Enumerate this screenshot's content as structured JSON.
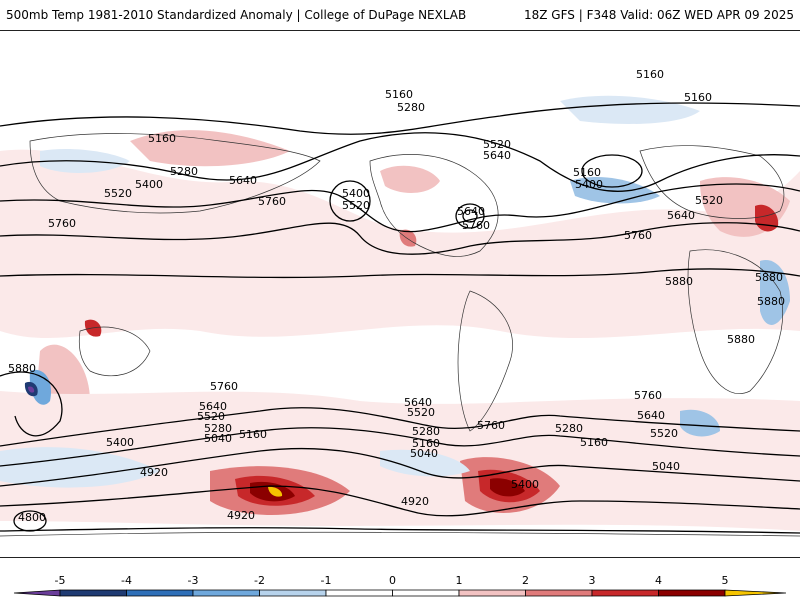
{
  "header": {
    "title": "500mb Temp 1981-2010 Standardized Anomaly | College of DuPage NEXLAB",
    "run_info": "18Z GFS | F348 Valid: 06Z WED APR 09 2025"
  },
  "map": {
    "contour_labels": {
      "top_5160_a": "5160",
      "top_5160_b": "5160",
      "n_5160_c": "5160",
      "n_5280_a": "5280",
      "n_5160_d": "5160",
      "n_5280_b": "5280",
      "n_5400_a": "5400",
      "n_5520_a": "5520",
      "n_5640_a": "5640",
      "n_5760_a": "5760",
      "n_5760_b": "5760",
      "n_5400_b": "5400",
      "n_5520_b": "5520",
      "n_5520_c": "5520",
      "n_5640_b": "5640",
      "n_5640_c": "5640",
      "n_5760_c": "5760",
      "n_5160_e": "5160",
      "n_5400_c": "5400",
      "n_5520_d": "5520",
      "n_5640_d": "5640",
      "n_5760_d": "5760",
      "n_5880_a": "5880",
      "n_5880_b": "5880",
      "n_5880_c": "5880",
      "n_5880_d": "5880",
      "s_5880_e": "5880",
      "s_5760_e": "5760",
      "s_5640_e": "5640",
      "s_5520_e": "5520",
      "s_5400_e": "5400",
      "s_5280_e": "5280",
      "s_5040_e": "5040",
      "s_5160_f": "5160",
      "s_4920_a": "4920",
      "s_4800_a": "4800",
      "s_4920_b": "4920",
      "s_5640_f": "5640",
      "s_5520_f": "5520",
      "s_5760_f": "5760",
      "s_5280_f": "5280",
      "s_5160_g": "5160",
      "s_5040_f": "5040",
      "s_4920_c": "4920",
      "s_5400_f": "5400",
      "s_5280_g": "5280",
      "s_5160_h": "5160",
      "s_5760_g": "5760",
      "s_5640_g": "5640",
      "s_5520_g": "5520",
      "s_5040_g": "5040"
    }
  },
  "colorbar": {
    "ticks": [
      "-5",
      "-4",
      "-3",
      "-2",
      "-1",
      "0",
      "1",
      "2",
      "3",
      "4",
      "5"
    ],
    "colors": [
      "#6a3d9a",
      "#1f3b73",
      "#2e6fb8",
      "#6fa8dc",
      "#b7d3ec",
      "#ffffff",
      "#ffffff",
      "#f2c2c2",
      "#e07b7b",
      "#c7282a",
      "#8b0000",
      "#f5c400"
    ]
  }
}
